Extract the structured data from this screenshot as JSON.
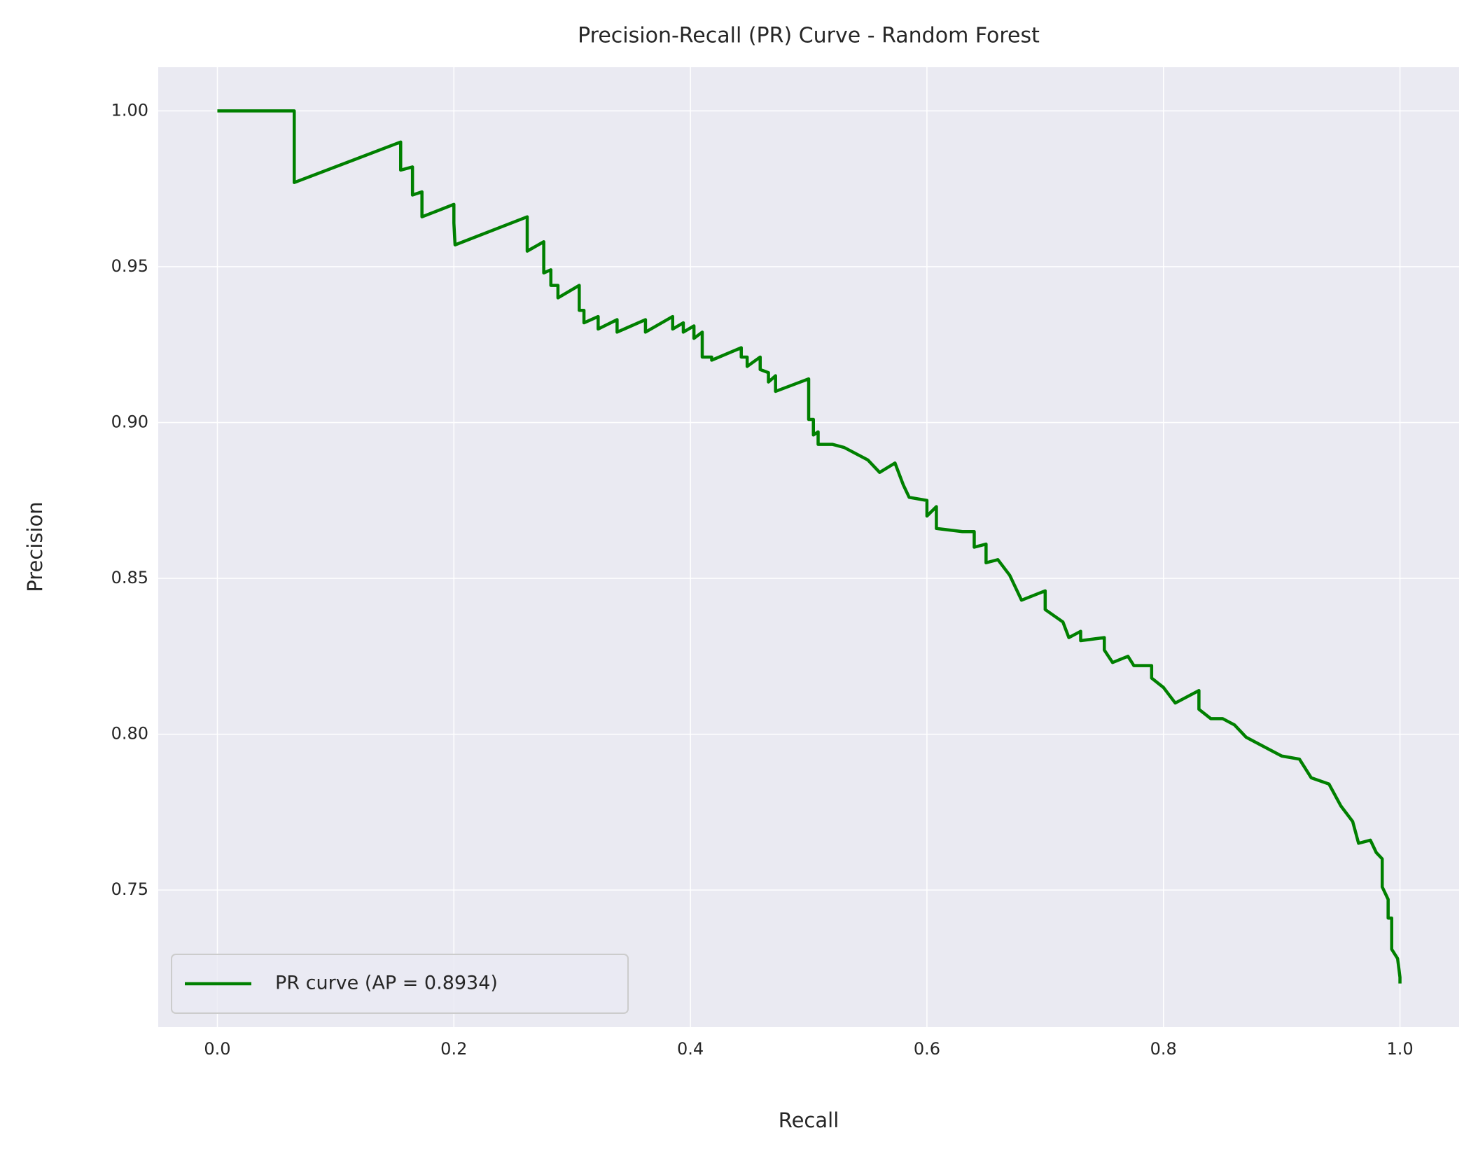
{
  "chart_data": {
    "type": "line",
    "title": "Precision-Recall (PR) Curve - Random Forest",
    "xlabel": "Recall",
    "ylabel": "Precision",
    "x": [
      0,
      0.065,
      0.065,
      0.155,
      0.155,
      0.165,
      0.165,
      0.173,
      0.173,
      0.2,
      0.2,
      0.201,
      0.262,
      0.262,
      0.276,
      0.276,
      0.282,
      0.282,
      0.288,
      0.288,
      0.306,
      0.306,
      0.31,
      0.31,
      0.322,
      0.322,
      0.338,
      0.338,
      0.362,
      0.362,
      0.385,
      0.385,
      0.394,
      0.394,
      0.403,
      0.403,
      0.41,
      0.41,
      0.418,
      0.418,
      0.443,
      0.443,
      0.448,
      0.448,
      0.459,
      0.459,
      0.466,
      0.466,
      0.472,
      0.472,
      0.5,
      0.5,
      0.504,
      0.504,
      0.508,
      0.508,
      0.52,
      0.53,
      0.55,
      0.56,
      0.573,
      0.58,
      0.585,
      0.6,
      0.6,
      0.608,
      0.608,
      0.63,
      0.64,
      0.64,
      0.65,
      0.65,
      0.66,
      0.67,
      0.68,
      0.7,
      0.7,
      0.715,
      0.72,
      0.73,
      0.73,
      0.75,
      0.75,
      0.757,
      0.77,
      0.775,
      0.79,
      0.79,
      0.8,
      0.81,
      0.83,
      0.83,
      0.84,
      0.85,
      0.86,
      0.87,
      0.89,
      0.9,
      0.915,
      0.925,
      0.94,
      0.95,
      0.96,
      0.965,
      0.975,
      0.98,
      0.985,
      0.985,
      0.99,
      0.99,
      0.993,
      0.993,
      0.998,
      1,
      1
    ],
    "series": [
      {
        "name": "PR curve (AP = 0.8934)",
        "color": "#008000",
        "values": [
          1,
          1,
          0.977,
          0.99,
          0.981,
          0.982,
          0.973,
          0.974,
          0.966,
          0.97,
          0.964,
          0.957,
          0.966,
          0.955,
          0.958,
          0.948,
          0.949,
          0.944,
          0.944,
          0.94,
          0.944,
          0.936,
          0.936,
          0.932,
          0.934,
          0.93,
          0.933,
          0.929,
          0.933,
          0.929,
          0.934,
          0.93,
          0.932,
          0.929,
          0.931,
          0.927,
          0.929,
          0.921,
          0.921,
          0.92,
          0.924,
          0.921,
          0.921,
          0.918,
          0.921,
          0.917,
          0.916,
          0.913,
          0.915,
          0.91,
          0.914,
          0.901,
          0.901,
          0.896,
          0.897,
          0.893,
          0.893,
          0.892,
          0.888,
          0.884,
          0.887,
          0.88,
          0.876,
          0.875,
          0.87,
          0.873,
          0.866,
          0.865,
          0.865,
          0.86,
          0.861,
          0.855,
          0.856,
          0.851,
          0.843,
          0.846,
          0.84,
          0.836,
          0.831,
          0.833,
          0.83,
          0.831,
          0.827,
          0.823,
          0.825,
          0.822,
          0.822,
          0.818,
          0.815,
          0.81,
          0.814,
          0.808,
          0.805,
          0.805,
          0.803,
          0.799,
          0.795,
          0.793,
          0.792,
          0.786,
          0.784,
          0.777,
          0.772,
          0.765,
          0.766,
          0.762,
          0.76,
          0.751,
          0.747,
          0.741,
          0.741,
          0.731,
          0.728,
          0.722,
          0.72
        ]
      }
    ],
    "xlim": [
      -0.05,
      1.05
    ],
    "ylim": [
      0.706,
      1.014
    ],
    "xticks": [
      {
        "value": 0,
        "label": "0.0"
      },
      0.2,
      0.4,
      0.6,
      0.8,
      {
        "value": 1,
        "label": "1.0"
      }
    ],
    "yticks": [
      0.75,
      {
        "value": 0.8,
        "label": "0.80"
      },
      0.85,
      {
        "value": 0.9,
        "label": "0.90"
      },
      0.95,
      {
        "value": 1,
        "label": "1.00"
      }
    ],
    "grid": true,
    "legend": "lower left"
  }
}
